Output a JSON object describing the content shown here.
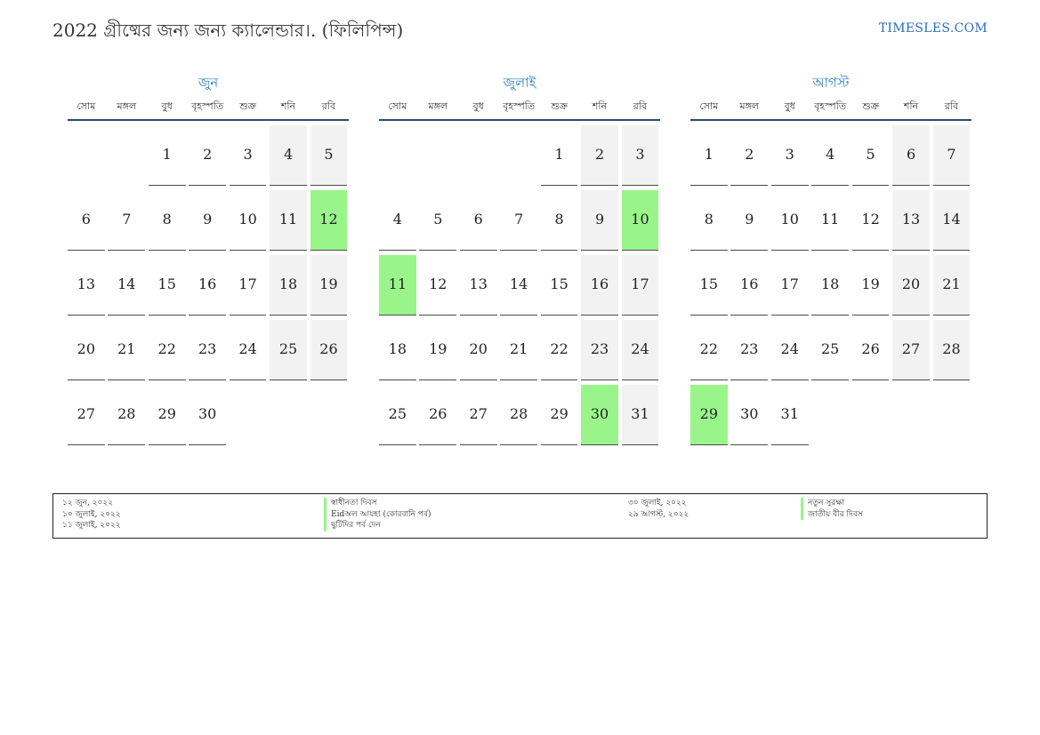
{
  "header": {
    "title": "2022 গ্রীষ্মের জন্য জন্য ক্যালেন্ডার।. (ফিলিপিন্স)",
    "site": "TIMESLES.COM"
  },
  "colors": {
    "holiday": "#99f58a",
    "weekend": "#f2f2f2",
    "month_name": "#2a7ec2",
    "rule": "#2c4a6e"
  },
  "weekdays": [
    "সোম",
    "মঙ্গল",
    "বুধ",
    "বৃহস্পতি",
    "শুক্র",
    "শনি",
    "রবি"
  ],
  "months": [
    {
      "name": "জুন",
      "weeks": [
        [
          "",
          "",
          "1",
          "2",
          "3",
          "4",
          "5"
        ],
        [
          "6",
          "7",
          "8",
          "9",
          "10",
          "11",
          "12"
        ],
        [
          "13",
          "14",
          "15",
          "16",
          "17",
          "18",
          "19"
        ],
        [
          "20",
          "21",
          "22",
          "23",
          "24",
          "25",
          "26"
        ],
        [
          "27",
          "28",
          "29",
          "30",
          "",
          "",
          ""
        ]
      ],
      "holidays": [
        "12"
      ]
    },
    {
      "name": "জুলাই",
      "weeks": [
        [
          "",
          "",
          "",
          "",
          "1",
          "2",
          "3"
        ],
        [
          "4",
          "5",
          "6",
          "7",
          "8",
          "9",
          "10"
        ],
        [
          "11",
          "12",
          "13",
          "14",
          "15",
          "16",
          "17"
        ],
        [
          "18",
          "19",
          "20",
          "21",
          "22",
          "23",
          "24"
        ],
        [
          "25",
          "26",
          "27",
          "28",
          "29",
          "30",
          "31"
        ]
      ],
      "holidays": [
        "10",
        "11",
        "30"
      ]
    },
    {
      "name": "আগস্ট",
      "weeks": [
        [
          "1",
          "2",
          "3",
          "4",
          "5",
          "6",
          "7"
        ],
        [
          "8",
          "9",
          "10",
          "11",
          "12",
          "13",
          "14"
        ],
        [
          "15",
          "16",
          "17",
          "18",
          "19",
          "20",
          "21"
        ],
        [
          "22",
          "23",
          "24",
          "25",
          "26",
          "27",
          "28"
        ],
        [
          "29",
          "30",
          "31",
          "",
          "",
          "",
          ""
        ]
      ],
      "holidays": [
        "29"
      ]
    }
  ],
  "legend": {
    "left_dates": [
      "১২ জুন, ২০২২",
      "১০ জুলাই, ২০২২",
      "১১ জুলাই, ২০২২"
    ],
    "left_names": [
      "স্বাধীনতা দিবস",
      "Eidঅল আযহা (কোরবানি পর্ব)",
      "ছুটিদির পর্ব দেন"
    ],
    "right_dates": [
      "৩০ জুলাই, ২০২২",
      "২৯ আগস্ট, ২০২২"
    ],
    "right_names": [
      "নতুন সুরক্ষা",
      "জাতীয় বীর দিবস"
    ]
  }
}
